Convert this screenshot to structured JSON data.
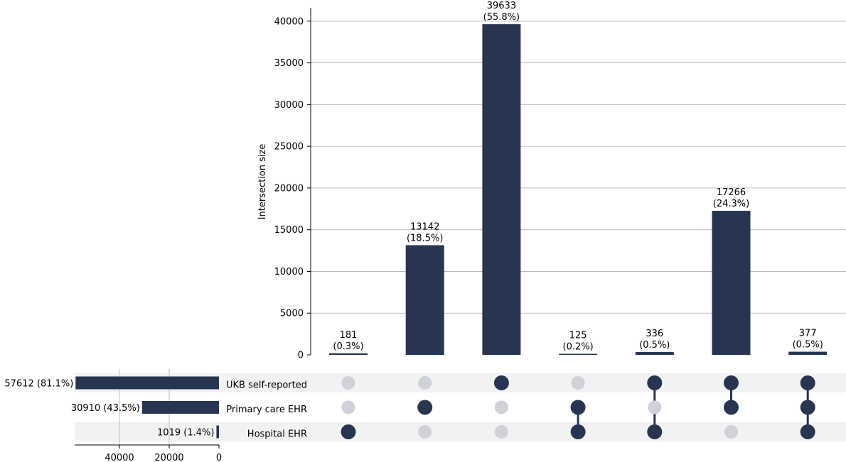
{
  "chart_data": {
    "type": "upset",
    "ylabel": "Intersection size",
    "ylim": [
      0,
      41600
    ],
    "yticks": [
      0,
      5000,
      10000,
      15000,
      20000,
      25000,
      30000,
      35000,
      40000
    ],
    "grid": true,
    "sets": [
      {
        "name": "UKB self-reported",
        "size": 57612,
        "label": "57612 (81.1%)"
      },
      {
        "name": "Primary care EHR",
        "size": 30910,
        "label": "30910 (43.5%)"
      },
      {
        "name": "Hospital EHR",
        "size": 1019,
        "label": "1019 (1.4%)"
      }
    ],
    "set_size_ticks": [
      40000,
      20000,
      0
    ],
    "set_size_xlim": [
      0,
      58000
    ],
    "intersections": [
      {
        "members": [
          false,
          false,
          true
        ],
        "value": 181,
        "count_label": "181",
        "percent_label": "(0.3%)"
      },
      {
        "members": [
          false,
          true,
          false
        ],
        "value": 13142,
        "count_label": "13142",
        "percent_label": "(18.5%)"
      },
      {
        "members": [
          true,
          false,
          false
        ],
        "value": 39633,
        "count_label": "39633",
        "percent_label": "(55.8%)"
      },
      {
        "members": [
          false,
          true,
          true
        ],
        "value": 125,
        "count_label": "125",
        "percent_label": "(0.2%)"
      },
      {
        "members": [
          true,
          false,
          true
        ],
        "value": 336,
        "count_label": "336",
        "percent_label": "(0.5%)"
      },
      {
        "members": [
          true,
          true,
          false
        ],
        "value": 17266,
        "count_label": "17266",
        "percent_label": "(24.3%)"
      },
      {
        "members": [
          true,
          true,
          true
        ],
        "value": 377,
        "count_label": "377",
        "percent_label": "(0.5%)"
      }
    ],
    "colors": {
      "bar": "#273550",
      "dot_active": "#273550",
      "dot_inactive": "#cfd2d9",
      "row_shade": "#f2f2f4",
      "grid": "#b0b0b0"
    }
  }
}
